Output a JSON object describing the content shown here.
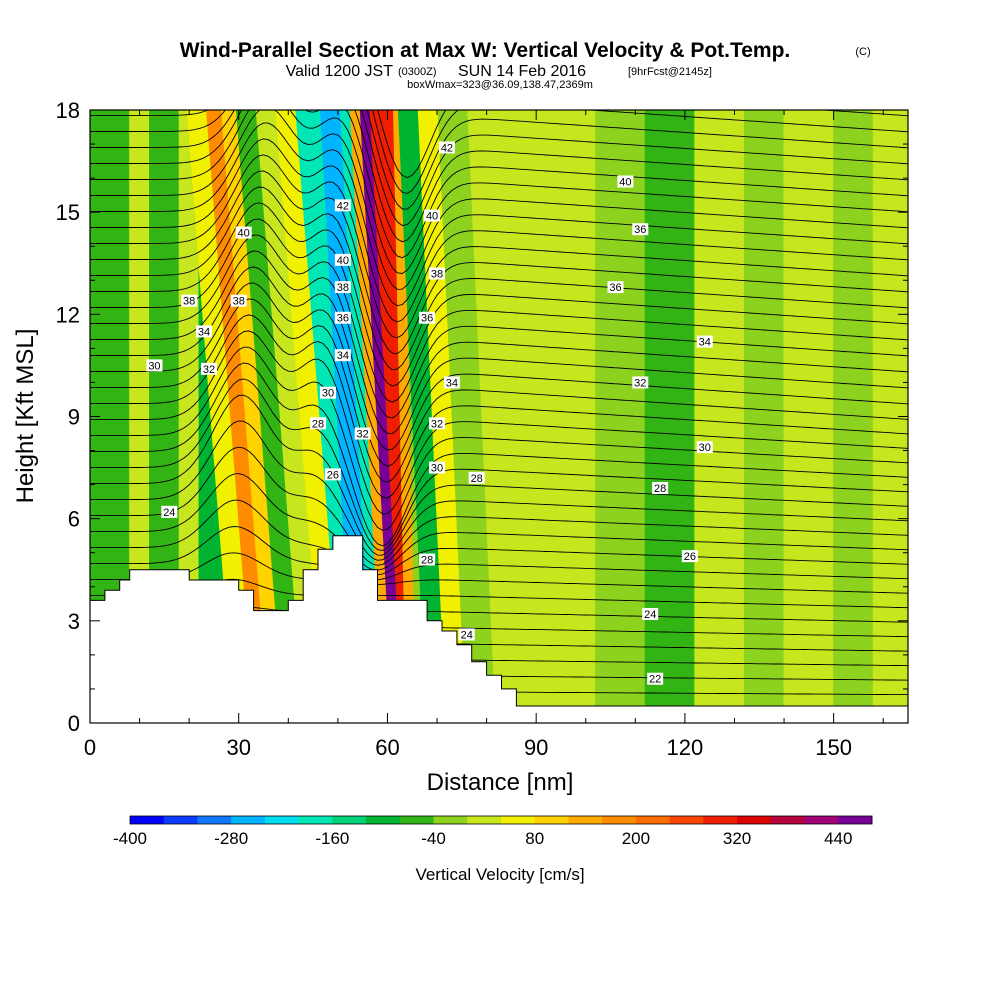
{
  "header": {
    "title": "Wind-Parallel Section at Max W: Vertical Velocity & Pot.Temp.",
    "copyright": "(C)",
    "valid_prefix": "Valid 1200 JST",
    "valid_utc": "(0300Z)",
    "valid_date": "SUN 14 Feb 2016",
    "forecast": "[9hrFcst@2145z]",
    "box_info": "boxWmax=323@36.09,138.47,2369m"
  },
  "chart_data": {
    "type": "heatmap",
    "xlabel": "Distance [nm]",
    "ylabel": "Height [Kft MSL]",
    "xlim": [
      0,
      165
    ],
    "ylim": [
      0,
      18
    ],
    "xticks": [
      0,
      30,
      60,
      90,
      120,
      150
    ],
    "yticks": [
      0,
      3,
      6,
      9,
      12,
      15,
      18
    ],
    "colorbar": {
      "label": "Vertical Velocity [cm/s]",
      "levels": [
        -400,
        -360,
        -320,
        -280,
        -240,
        -200,
        -160,
        -120,
        -80,
        -40,
        0,
        40,
        80,
        120,
        160,
        200,
        240,
        280,
        320,
        360,
        400,
        440,
        480
      ],
      "tick_labels": [
        "-400",
        "-280",
        "-160",
        "-40",
        "80",
        "200",
        "320",
        "440"
      ],
      "tick_values": [
        -400,
        -280,
        -160,
        -40,
        80,
        200,
        320,
        440
      ],
      "colors": [
        "#0000ff",
        "#0a3cff",
        "#0f78ff",
        "#00b4ff",
        "#00dcf0",
        "#00e6b4",
        "#00d278",
        "#00b432",
        "#32b414",
        "#8cd21e",
        "#c8e61e",
        "#f0f000",
        "#ffd200",
        "#ffaa00",
        "#ff8c00",
        "#ff6e00",
        "#ff4600",
        "#f01e00",
        "#dc0000",
        "#b4003c",
        "#a00078",
        "#780096"
      ]
    },
    "vertical_velocity_bands": [
      {
        "x": [
          0,
          8
        ],
        "w": -60
      },
      {
        "x": [
          8,
          12
        ],
        "w": 0
      },
      {
        "x": [
          12,
          18
        ],
        "w": -60
      },
      {
        "x": [
          18,
          22
        ],
        "w": 0
      },
      {
        "x": [
          22,
          26
        ],
        "w": -120
      },
      {
        "x": [
          26,
          30
        ],
        "w": 40
      },
      {
        "x": [
          30,
          33
        ],
        "w": 160
      },
      {
        "x": [
          33,
          36
        ],
        "w": 80
      },
      {
        "x": [
          36,
          40
        ],
        "w": -80
      },
      {
        "x": [
          40,
          44
        ],
        "w": 0
      },
      {
        "x": [
          44,
          48
        ],
        "w": 40
      },
      {
        "x": [
          48,
          50
        ],
        "w": -200
      },
      {
        "x": [
          50,
          54
        ],
        "w": -280
      },
      {
        "x": [
          54,
          56
        ],
        "w": -200
      },
      {
        "x": [
          56,
          58
        ],
        "w": 120
      },
      {
        "x": [
          58,
          60
        ],
        "w": 440
      },
      {
        "x": [
          60,
          62
        ],
        "w": 300
      },
      {
        "x": [
          62,
          64
        ],
        "w": 120
      },
      {
        "x": [
          64,
          66
        ],
        "w": -40
      },
      {
        "x": [
          66,
          70
        ],
        "w": -120
      },
      {
        "x": [
          70,
          74
        ],
        "w": 40
      },
      {
        "x": [
          74,
          80
        ],
        "w": -40
      },
      {
        "x": [
          80,
          90
        ],
        "w": 0
      },
      {
        "x": [
          90,
          102
        ],
        "w": 20
      },
      {
        "x": [
          102,
          112
        ],
        "w": -40
      },
      {
        "x": [
          112,
          122
        ],
        "w": -60
      },
      {
        "x": [
          122,
          132
        ],
        "w": 0
      },
      {
        "x": [
          132,
          140
        ],
        "w": -40
      },
      {
        "x": [
          140,
          150
        ],
        "w": 20
      },
      {
        "x": [
          150,
          158
        ],
        "w": -40
      },
      {
        "x": [
          158,
          165
        ],
        "w": 0
      }
    ],
    "terrain": [
      [
        0,
        3.6
      ],
      [
        3,
        3.6
      ],
      [
        3,
        3.9
      ],
      [
        6,
        3.9
      ],
      [
        6,
        4.2
      ],
      [
        8,
        4.2
      ],
      [
        8,
        4.5
      ],
      [
        12,
        4.5
      ],
      [
        12,
        4.5
      ],
      [
        20,
        4.5
      ],
      [
        20,
        4.2
      ],
      [
        30,
        4.2
      ],
      [
        30,
        3.9
      ],
      [
        33,
        3.9
      ],
      [
        33,
        3.3
      ],
      [
        40,
        3.3
      ],
      [
        40,
        3.6
      ],
      [
        43,
        3.6
      ],
      [
        43,
        4.5
      ],
      [
        46,
        4.5
      ],
      [
        46,
        5.1
      ],
      [
        49,
        5.1
      ],
      [
        49,
        5.5
      ],
      [
        55,
        5.5
      ],
      [
        55,
        4.5
      ],
      [
        58,
        4.5
      ],
      [
        58,
        3.6
      ],
      [
        68,
        3.6
      ],
      [
        68,
        3.0
      ],
      [
        71,
        3.0
      ],
      [
        71,
        2.7
      ],
      [
        74,
        2.7
      ],
      [
        74,
        2.3
      ],
      [
        77,
        2.3
      ],
      [
        77,
        1.8
      ],
      [
        80,
        1.8
      ],
      [
        80,
        1.4
      ],
      [
        83,
        1.4
      ],
      [
        83,
        1.0
      ],
      [
        86,
        1.0
      ],
      [
        86,
        0.5
      ],
      [
        165,
        0.5
      ]
    ],
    "theta_levels": [
      22,
      24,
      26,
      28,
      30,
      32,
      34,
      36,
      38,
      40,
      42
    ],
    "contour_labels": [
      {
        "text": "42",
        "x": 72,
        "y": 16.9
      },
      {
        "text": "40",
        "x": 108,
        "y": 15.9
      },
      {
        "text": "42",
        "x": 51,
        "y": 15.2
      },
      {
        "text": "40",
        "x": 69,
        "y": 14.9
      },
      {
        "text": "40",
        "x": 31,
        "y": 14.4
      },
      {
        "text": "36",
        "x": 111,
        "y": 14.5
      },
      {
        "text": "40",
        "x": 51,
        "y": 13.6
      },
      {
        "text": "38",
        "x": 70,
        "y": 13.2
      },
      {
        "text": "36",
        "x": 106,
        "y": 12.8
      },
      {
        "text": "38",
        "x": 20,
        "y": 12.4
      },
      {
        "text": "38",
        "x": 30,
        "y": 12.4
      },
      {
        "text": "38",
        "x": 51,
        "y": 12.8
      },
      {
        "text": "36",
        "x": 51,
        "y": 11.9
      },
      {
        "text": "36",
        "x": 68,
        "y": 11.9
      },
      {
        "text": "34",
        "x": 23,
        "y": 11.5
      },
      {
        "text": "34",
        "x": 124,
        "y": 11.2
      },
      {
        "text": "34",
        "x": 51,
        "y": 10.8
      },
      {
        "text": "30",
        "x": 13,
        "y": 10.5
      },
      {
        "text": "32",
        "x": 24,
        "y": 10.4
      },
      {
        "text": "34",
        "x": 73,
        "y": 10.0
      },
      {
        "text": "32",
        "x": 111,
        "y": 10.0
      },
      {
        "text": "30",
        "x": 48,
        "y": 9.7
      },
      {
        "text": "28",
        "x": 46,
        "y": 8.8
      },
      {
        "text": "32",
        "x": 55,
        "y": 8.5
      },
      {
        "text": "32",
        "x": 70,
        "y": 8.8
      },
      {
        "text": "30",
        "x": 124,
        "y": 8.1
      },
      {
        "text": "26",
        "x": 49,
        "y": 7.3
      },
      {
        "text": "30",
        "x": 70,
        "y": 7.5
      },
      {
        "text": "28",
        "x": 78,
        "y": 7.2
      },
      {
        "text": "28",
        "x": 115,
        "y": 6.9
      },
      {
        "text": "24",
        "x": 16,
        "y": 6.2
      },
      {
        "text": "26",
        "x": 121,
        "y": 4.9
      },
      {
        "text": "28",
        "x": 68,
        "y": 4.8
      },
      {
        "text": "24",
        "x": 113,
        "y": 3.2
      },
      {
        "text": "24",
        "x": 76,
        "y": 2.6
      },
      {
        "text": "22",
        "x": 114,
        "y": 1.3
      }
    ]
  }
}
